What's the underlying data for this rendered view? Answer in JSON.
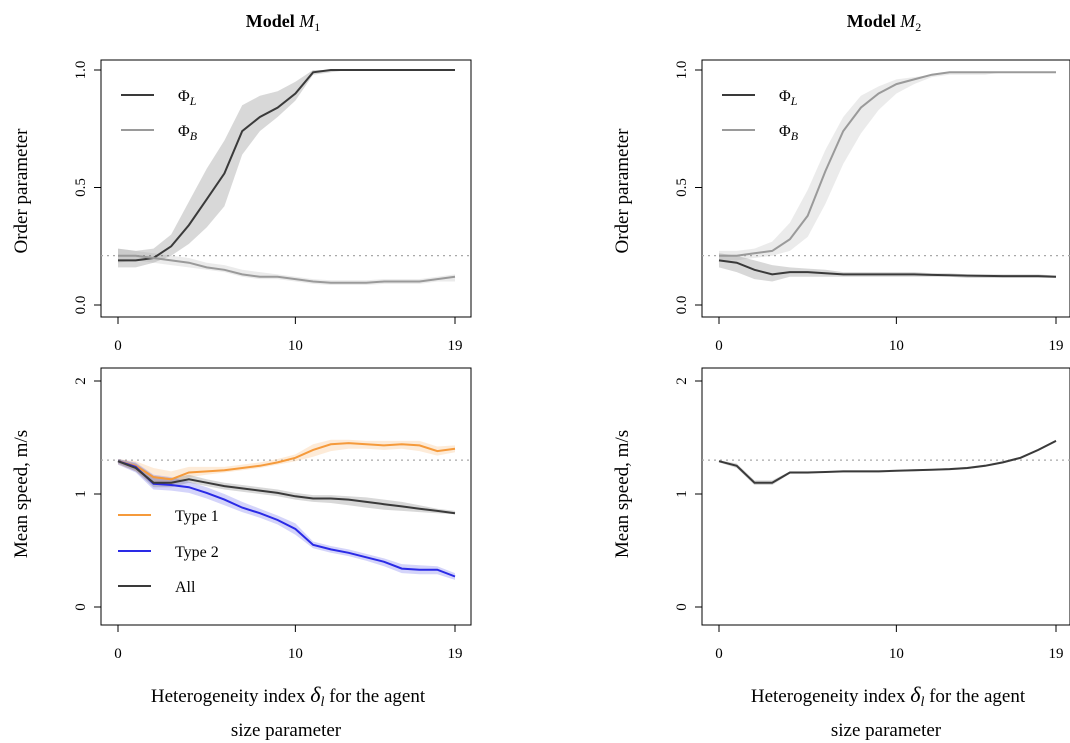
{
  "colors": {
    "dark": "#3a3a3a",
    "gray": "#9a9a9a",
    "orange": "#f59a3b",
    "blue": "#2a2ae6",
    "ref_line": "#a8a8a8"
  },
  "chart_data": [
    {
      "type": "line",
      "panel": "top-left",
      "title": "Model M₁",
      "ylabel": "Order parameter",
      "xlabel": "",
      "xlim": [
        0,
        19
      ],
      "ylim": [
        0,
        1
      ],
      "xticks": [
        0,
        10,
        19
      ],
      "yticks": [
        "0.0",
        "0.5",
        "1.0"
      ],
      "reference_line": 0.21,
      "legend": {
        "position": "top-left"
      },
      "x": [
        0,
        1,
        2,
        3,
        4,
        5,
        6,
        7,
        8,
        9,
        10,
        11,
        12,
        13,
        14,
        15,
        16,
        17,
        18,
        19
      ],
      "series": [
        {
          "name": "ΦL",
          "legend": "ΦL",
          "color_key": "dark",
          "values": [
            0.19,
            0.19,
            0.2,
            0.25,
            0.34,
            0.45,
            0.56,
            0.74,
            0.8,
            0.84,
            0.9,
            0.99,
            1.0,
            1.0,
            1.0,
            1.0,
            1.0,
            1.0,
            1.0,
            1.0
          ],
          "band_low": [
            0.16,
            0.16,
            0.18,
            0.21,
            0.26,
            0.33,
            0.42,
            0.64,
            0.74,
            0.8,
            0.87,
            0.98,
            0.99,
            1.0,
            1.0,
            1.0,
            1.0,
            1.0,
            1.0,
            1.0
          ],
          "band_high": [
            0.24,
            0.23,
            0.24,
            0.3,
            0.44,
            0.58,
            0.7,
            0.85,
            0.89,
            0.91,
            0.95,
            1.0,
            1.0,
            1.0,
            1.0,
            1.0,
            1.0,
            1.0,
            1.0,
            1.0
          ]
        },
        {
          "name": "ΦB",
          "legend": "ΦB",
          "color_key": "gray",
          "values": [
            0.21,
            0.21,
            0.2,
            0.19,
            0.18,
            0.16,
            0.15,
            0.13,
            0.12,
            0.12,
            0.11,
            0.1,
            0.095,
            0.095,
            0.095,
            0.1,
            0.1,
            0.1,
            0.11,
            0.12
          ],
          "band_low": [
            0.18,
            0.19,
            0.18,
            0.17,
            0.16,
            0.15,
            0.14,
            0.12,
            0.11,
            0.11,
            0.1,
            0.09,
            0.085,
            0.085,
            0.085,
            0.09,
            0.09,
            0.09,
            0.1,
            0.1
          ],
          "band_high": [
            0.24,
            0.23,
            0.22,
            0.21,
            0.2,
            0.18,
            0.17,
            0.15,
            0.14,
            0.13,
            0.12,
            0.11,
            0.105,
            0.105,
            0.105,
            0.11,
            0.11,
            0.11,
            0.12,
            0.13
          ]
        }
      ]
    },
    {
      "type": "line",
      "panel": "top-right",
      "title": "Model M₂",
      "ylabel": "Order parameter",
      "xlabel": "",
      "xlim": [
        0,
        19
      ],
      "ylim": [
        0,
        1
      ],
      "xticks": [
        0,
        10,
        19
      ],
      "yticks": [
        "0.0",
        "0.5",
        "1.0"
      ],
      "reference_line": 0.21,
      "legend": {
        "position": "top-left"
      },
      "x": [
        0,
        1,
        2,
        3,
        4,
        5,
        6,
        7,
        8,
        9,
        10,
        11,
        12,
        13,
        14,
        15,
        16,
        17,
        18,
        19
      ],
      "series": [
        {
          "name": "ΦL",
          "legend": "ΦL",
          "color_key": "dark",
          "values": [
            0.19,
            0.18,
            0.15,
            0.13,
            0.14,
            0.14,
            0.135,
            0.13,
            0.13,
            0.13,
            0.13,
            0.13,
            0.128,
            0.127,
            0.125,
            0.124,
            0.123,
            0.123,
            0.123,
            0.12
          ],
          "band_low": [
            0.16,
            0.14,
            0.11,
            0.1,
            0.12,
            0.12,
            0.12,
            0.12,
            0.12,
            0.12,
            0.12,
            0.12,
            0.12,
            0.12,
            0.115,
            0.115,
            0.115,
            0.115,
            0.115,
            0.115
          ],
          "band_high": [
            0.22,
            0.21,
            0.19,
            0.17,
            0.16,
            0.155,
            0.15,
            0.14,
            0.14,
            0.14,
            0.14,
            0.14,
            0.135,
            0.135,
            0.13,
            0.13,
            0.13,
            0.13,
            0.13,
            0.125
          ]
        },
        {
          "name": "ΦB",
          "legend": "ΦB",
          "color_key": "gray",
          "values": [
            0.21,
            0.21,
            0.22,
            0.23,
            0.28,
            0.38,
            0.57,
            0.74,
            0.84,
            0.9,
            0.94,
            0.96,
            0.98,
            0.99,
            0.99,
            0.99,
            0.99,
            0.99,
            0.99,
            0.99
          ],
          "band_low": [
            0.19,
            0.19,
            0.2,
            0.21,
            0.23,
            0.29,
            0.43,
            0.6,
            0.73,
            0.83,
            0.9,
            0.94,
            0.97,
            0.98,
            0.98,
            0.98,
            0.99,
            0.99,
            0.99,
            0.99
          ],
          "band_high": [
            0.23,
            0.23,
            0.24,
            0.27,
            0.35,
            0.49,
            0.66,
            0.8,
            0.89,
            0.93,
            0.96,
            0.97,
            0.98,
            0.99,
            0.99,
            0.99,
            0.99,
            0.99,
            0.99,
            0.99
          ]
        }
      ]
    },
    {
      "type": "line",
      "panel": "bottom-left",
      "title": "",
      "ylabel": "Mean speed, m/s",
      "xlabel": "Heterogeneity index δl for the agent size parameter",
      "xlim": [
        0,
        19
      ],
      "ylim": [
        0,
        2
      ],
      "xticks": [
        0,
        10,
        19
      ],
      "yticks": [
        "0",
        "1",
        "2"
      ],
      "reference_line": 1.3,
      "legend": {
        "position": "bottom-left"
      },
      "x": [
        0,
        1,
        2,
        3,
        4,
        5,
        6,
        7,
        8,
        9,
        10,
        11,
        12,
        13,
        14,
        15,
        16,
        17,
        18,
        19
      ],
      "series": [
        {
          "name": "Type 1",
          "legend": "Type 1",
          "color_key": "orange",
          "values": [
            1.29,
            1.25,
            1.15,
            1.13,
            1.19,
            1.2,
            1.21,
            1.23,
            1.25,
            1.28,
            1.32,
            1.39,
            1.44,
            1.45,
            1.44,
            1.43,
            1.44,
            1.43,
            1.38,
            1.4
          ],
          "band_low": [
            1.26,
            1.2,
            1.08,
            1.08,
            1.15,
            1.17,
            1.19,
            1.21,
            1.23,
            1.26,
            1.29,
            1.33,
            1.38,
            1.4,
            1.4,
            1.39,
            1.4,
            1.38,
            1.34,
            1.37
          ],
          "band_high": [
            1.31,
            1.29,
            1.23,
            1.2,
            1.24,
            1.24,
            1.24,
            1.26,
            1.28,
            1.31,
            1.35,
            1.44,
            1.48,
            1.48,
            1.47,
            1.47,
            1.47,
            1.47,
            1.42,
            1.43
          ]
        },
        {
          "name": "Type 2",
          "legend": "Type 2",
          "color_key": "blue",
          "values": [
            1.29,
            1.24,
            1.09,
            1.08,
            1.06,
            1.01,
            0.95,
            0.88,
            0.83,
            0.77,
            0.69,
            0.55,
            0.51,
            0.48,
            0.44,
            0.4,
            0.34,
            0.33,
            0.33,
            0.27
          ],
          "band_low": [
            1.26,
            1.19,
            1.04,
            1.03,
            1.01,
            0.96,
            0.9,
            0.84,
            0.79,
            0.73,
            0.64,
            0.52,
            0.48,
            0.45,
            0.41,
            0.36,
            0.3,
            0.29,
            0.29,
            0.24
          ],
          "band_high": [
            1.31,
            1.28,
            1.17,
            1.15,
            1.11,
            1.06,
            1.0,
            0.93,
            0.87,
            0.81,
            0.74,
            0.58,
            0.54,
            0.51,
            0.47,
            0.43,
            0.38,
            0.37,
            0.36,
            0.3
          ]
        },
        {
          "name": "All",
          "legend": "All",
          "color_key": "dark",
          "values": [
            1.29,
            1.23,
            1.1,
            1.1,
            1.13,
            1.1,
            1.07,
            1.05,
            1.03,
            1.01,
            0.98,
            0.96,
            0.96,
            0.95,
            0.93,
            0.91,
            0.89,
            0.87,
            0.85,
            0.83
          ],
          "band_low": [
            1.27,
            1.2,
            1.06,
            1.06,
            1.1,
            1.07,
            1.04,
            1.02,
            1.0,
            0.98,
            0.95,
            0.93,
            0.92,
            0.9,
            0.88,
            0.86,
            0.85,
            0.84,
            0.83,
            0.82
          ],
          "band_high": [
            1.31,
            1.27,
            1.16,
            1.14,
            1.17,
            1.13,
            1.1,
            1.08,
            1.06,
            1.04,
            1.01,
            0.99,
            0.99,
            0.98,
            0.97,
            0.95,
            0.93,
            0.9,
            0.87,
            0.85
          ]
        }
      ]
    },
    {
      "type": "line",
      "panel": "bottom-right",
      "title": "",
      "ylabel": "Mean speed, m/s",
      "xlabel": "Heterogeneity index δl for the agent size parameter",
      "xlim": [
        0,
        19
      ],
      "ylim": [
        0,
        2
      ],
      "xticks": [
        0,
        10,
        19
      ],
      "yticks": [
        "0",
        "1",
        "2"
      ],
      "reference_line": 1.3,
      "x": [
        0,
        1,
        2,
        3,
        4,
        5,
        6,
        7,
        8,
        9,
        10,
        11,
        12,
        13,
        14,
        15,
        16,
        17,
        18,
        19
      ],
      "series": [
        {
          "color_key": "dark",
          "values": [
            1.29,
            1.25,
            1.1,
            1.1,
            1.19,
            1.19,
            1.195,
            1.2,
            1.2,
            1.2,
            1.205,
            1.21,
            1.215,
            1.22,
            1.23,
            1.25,
            1.28,
            1.32,
            1.39,
            1.47
          ],
          "band_low": [
            1.28,
            1.23,
            1.08,
            1.08,
            1.18,
            1.18,
            1.19,
            1.19,
            1.19,
            1.19,
            1.2,
            1.2,
            1.21,
            1.21,
            1.22,
            1.24,
            1.27,
            1.31,
            1.38,
            1.46
          ],
          "band_high": [
            1.3,
            1.27,
            1.12,
            1.12,
            1.2,
            1.2,
            1.2,
            1.21,
            1.21,
            1.21,
            1.21,
            1.22,
            1.22,
            1.23,
            1.24,
            1.26,
            1.29,
            1.33,
            1.4,
            1.48
          ]
        }
      ]
    }
  ],
  "labels": {
    "title_left_prefix": "Model ",
    "title_left_var": "M",
    "title_left_sub": "1",
    "title_right_prefix": "Model ",
    "title_right_var": "M",
    "title_right_sub": "2",
    "xlabel_line1_prefix": "Heterogeneity index ",
    "xlabel_delta": "δ",
    "xlabel_delta_sub": "l",
    "xlabel_line1_suffix": " for the agent",
    "xlabel_line2": "size parameter",
    "legend_phi": "Φ",
    "legend_L": "L",
    "legend_B": "B"
  }
}
